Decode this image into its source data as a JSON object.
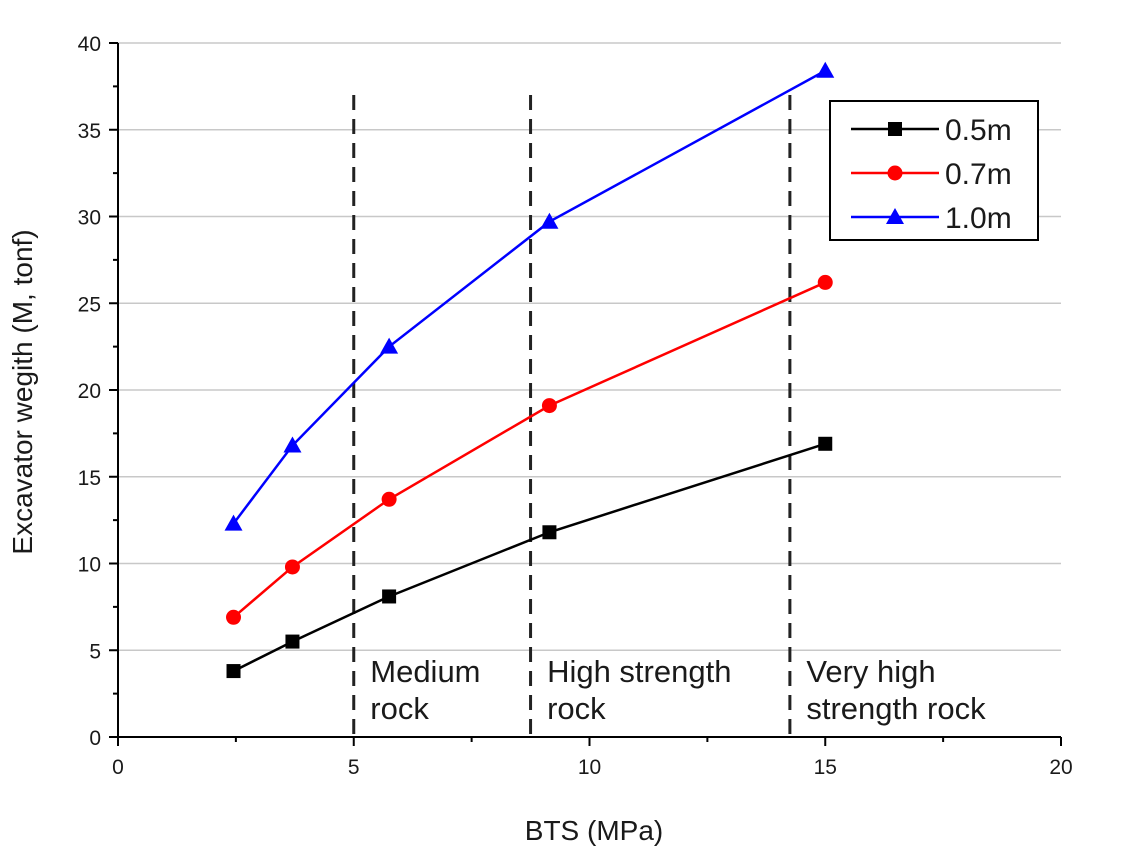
{
  "chart_data": {
    "type": "line",
    "title": "",
    "xlabel": "BTS (MPa)",
    "ylabel": "Excavator wegith (M, tonf)",
    "xlim": [
      0,
      20
    ],
    "ylim": [
      0,
      40
    ],
    "xticks": [
      0,
      5,
      10,
      15,
      20
    ],
    "yticks": [
      0,
      5,
      10,
      15,
      20,
      25,
      30,
      35,
      40
    ],
    "grid": "horizontal",
    "legend_position": "top-right",
    "series": [
      {
        "name": "0.5m",
        "color": "#000000",
        "marker": "square",
        "x": [
          2.45,
          3.7,
          5.75,
          9.15,
          15.0
        ],
        "y": [
          3.8,
          5.5,
          8.1,
          11.8,
          16.9
        ]
      },
      {
        "name": "0.7m",
        "color": "#ff0000",
        "marker": "circle",
        "x": [
          2.45,
          3.7,
          5.75,
          9.15,
          15.0
        ],
        "y": [
          6.9,
          9.8,
          13.7,
          19.1,
          26.2
        ]
      },
      {
        "name": "1.0m",
        "color": "#0000ff",
        "marker": "triangle",
        "x": [
          2.45,
          3.7,
          5.75,
          9.15,
          15.0
        ],
        "y": [
          12.3,
          16.8,
          22.5,
          29.7,
          38.4
        ]
      }
    ],
    "boundaries": [
      5.0,
      8.75,
      14.25
    ],
    "regions": [
      {
        "lines": [
          "Medium",
          "rock"
        ],
        "x": 5.35
      },
      {
        "lines": [
          "High strength",
          "rock"
        ],
        "x": 9.1
      },
      {
        "lines": [
          "Very high",
          "strength rock"
        ],
        "x": 14.6
      }
    ]
  }
}
